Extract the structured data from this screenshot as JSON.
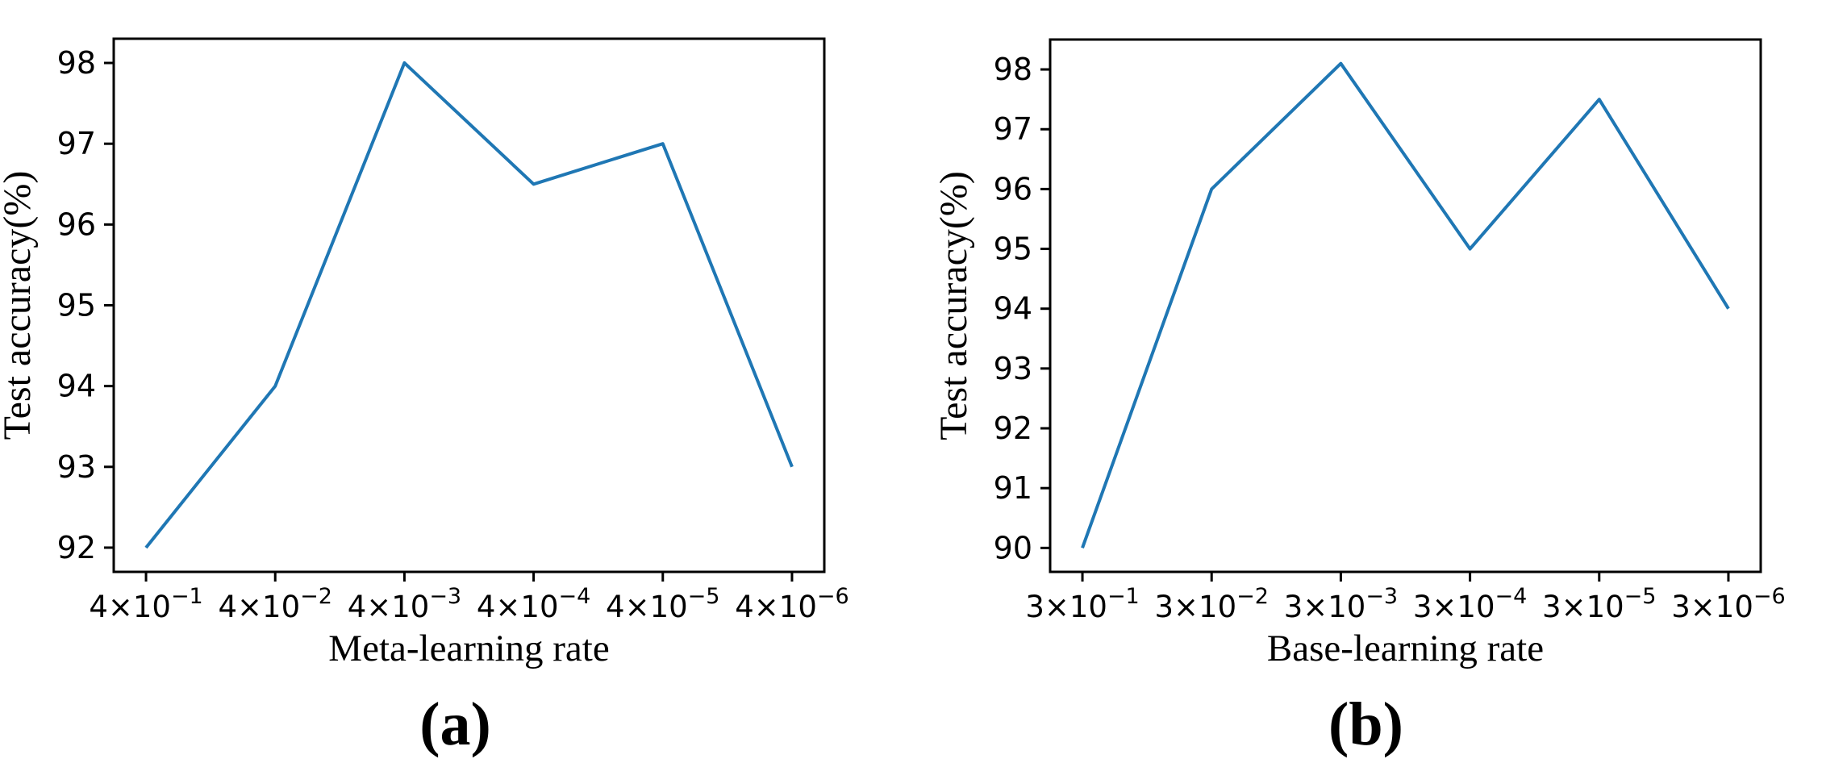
{
  "figure": {
    "background_color": "#ffffff",
    "axis_color": "#000000",
    "accent_color": "#1f77b4"
  },
  "chart_data": [
    {
      "type": "line",
      "panel_caption": "(a)",
      "xlabel": "Meta-learning rate",
      "ylabel": "Test accuracy(%)",
      "categories": [
        "4×10⁻¹",
        "4×10⁻²",
        "4×10⁻³",
        "4×10⁻⁴",
        "4×10⁻⁵",
        "4×10⁻⁶"
      ],
      "x_tick_base": "4×10",
      "x_tick_exponents": [
        "−1",
        "−2",
        "−3",
        "−4",
        "−5",
        "−6"
      ],
      "values": [
        92,
        94,
        98,
        96.5,
        97,
        93
      ],
      "yticks": [
        92,
        93,
        94,
        95,
        96,
        97,
        98
      ],
      "ylim": [
        91.7,
        98.3
      ],
      "grid": false,
      "legend": null,
      "line_color": "#1f77b4"
    },
    {
      "type": "line",
      "panel_caption": "(b)",
      "xlabel": "Base-learning rate",
      "ylabel": "Test accuracy(%)",
      "categories": [
        "3×10⁻¹",
        "3×10⁻²",
        "3×10⁻³",
        "3×10⁻⁴",
        "3×10⁻⁵",
        "3×10⁻⁶"
      ],
      "x_tick_base": "3×10",
      "x_tick_exponents": [
        "−1",
        "−2",
        "−3",
        "−4",
        "−5",
        "−6"
      ],
      "values": [
        90,
        96,
        98.1,
        95,
        97.5,
        94
      ],
      "yticks": [
        90,
        91,
        92,
        93,
        94,
        95,
        96,
        97,
        98
      ],
      "ylim": [
        89.6,
        98.5
      ],
      "grid": false,
      "legend": null,
      "line_color": "#1f77b4"
    }
  ]
}
